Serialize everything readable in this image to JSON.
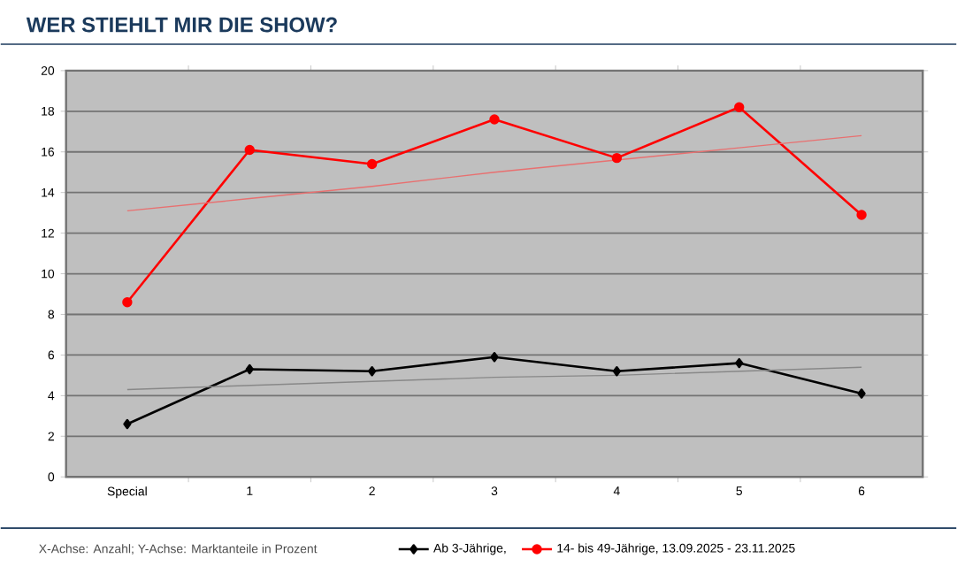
{
  "chart_data": {
    "type": "line",
    "title": "WER STIEHLT MIR DIE SHOW?",
    "categories": [
      "Special",
      "1",
      "2",
      "3",
      "4",
      "5",
      "6"
    ],
    "series": [
      {
        "name": "Ab 3-Jährige,",
        "color": "#000000",
        "marker": "diamond",
        "values": [
          2.6,
          5.3,
          5.2,
          5.9,
          5.2,
          5.6,
          4.1
        ]
      },
      {
        "name": "14- bis 49-Jährige, 13.09.2025 - 23.11.2025",
        "color": "#ff0000",
        "marker": "circle",
        "values": [
          8.6,
          16.1,
          15.4,
          17.6,
          15.7,
          18.2,
          12.9
        ]
      },
      {
        "color": "#888888",
        "marker": "none",
        "values": [
          4.3,
          4.5,
          4.7,
          4.9,
          5.0,
          5.2,
          5.4
        ]
      },
      {
        "color": "#e87070",
        "marker": "none",
        "values": [
          13.1,
          13.7,
          14.3,
          15.0,
          15.6,
          16.2,
          16.8
        ]
      }
    ],
    "ylim": [
      0,
      20
    ],
    "yticks": [
      0,
      2,
      4,
      6,
      8,
      10,
      12,
      14,
      16,
      18,
      20
    ],
    "grid": "y",
    "legend": "bottom",
    "annotations": [
      "X-Achse: Anzahl; Y-Achse: Marktanteile in Prozent"
    ]
  }
}
